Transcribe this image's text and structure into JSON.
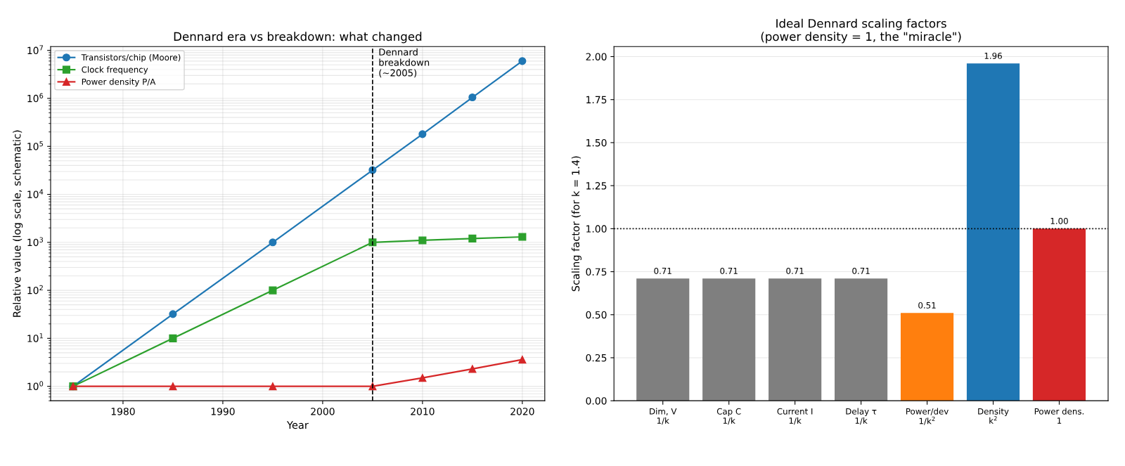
{
  "chart_data": [
    {
      "type": "line",
      "title": "Dennard era vs breakdown: what changed",
      "xlabel": "Year",
      "ylabel": "Relative value (log scale, schematic)",
      "x": [
        1975,
        1985,
        1995,
        2005,
        2010,
        2015,
        2020
      ],
      "series": [
        {
          "name": "Transistors/chip (Moore)",
          "color": "#1f77b4",
          "marker": "circle",
          "values": [
            1,
            32,
            1000,
            32000,
            180000,
            1050000,
            6000000
          ]
        },
        {
          "name": "Clock frequency",
          "color": "#2ca02c",
          "marker": "square",
          "values": [
            1,
            10,
            100,
            1000,
            1100,
            1200,
            1300
          ]
        },
        {
          "name": "Power density P/A",
          "color": "#d62728",
          "marker": "triangle",
          "values": [
            1,
            1,
            1,
            1,
            1.5,
            2.3,
            3.6
          ]
        }
      ],
      "log": "y",
      "xlim": [
        1972.75,
        2022.25
      ],
      "ylim": [
        0.5,
        12000000
      ],
      "xticks": [
        1980,
        1990,
        2000,
        2010,
        2020
      ],
      "yticks": [
        {
          "value": 1,
          "label": "10$^{0}$"
        },
        {
          "value": 10,
          "label": "10$^{1}$"
        },
        {
          "value": 100,
          "label": "10$^{2}$"
        },
        {
          "value": 1000,
          "label": "10$^{3}$"
        },
        {
          "value": 10000,
          "label": "10$^{4}$"
        },
        {
          "value": 100000,
          "label": "10$^{5}$"
        },
        {
          "value": 1000000,
          "label": "10$^{6}$"
        },
        {
          "value": 10000000,
          "label": "10$^{7}$"
        }
      ],
      "ref_lines": [
        {
          "axis": "x",
          "value": 2005,
          "label": "Dennard\nbreakdown\n(~2005)",
          "color": "#000000",
          "line_style": "dashed"
        }
      ],
      "grid": true,
      "legend": "top left",
      "line_style": "solid"
    },
    {
      "type": "bar",
      "title": "Ideal Dennard scaling factors\n(power density = 1, the \"miracle\")",
      "ylabel": "Scaling factor (for k = 1.4)",
      "categories": [
        "Dim, V\n1/k",
        "Cap C\n1/k",
        "Current I\n1/k",
        "Delay τ\n1/k",
        "Power/dev\n1/k$^{2}$",
        "Density\nk$^{2}$",
        "Power dens.\n1"
      ],
      "values": [
        0.71,
        0.71,
        0.71,
        0.71,
        0.51,
        1.96,
        1.0
      ],
      "colors": [
        "#7f7f7f",
        "#7f7f7f",
        "#7f7f7f",
        "#7f7f7f",
        "#ff7f0e",
        "#1f77b4",
        "#d62728"
      ],
      "value_labels": [
        "0.71",
        "0.71",
        "0.71",
        "0.71",
        "0.51",
        "1.96",
        "1.00"
      ],
      "ylim": [
        0,
        2.058
      ],
      "yticks": [
        {
          "value": 0,
          "label": "0.00"
        },
        {
          "value": 0.25,
          "label": "0.25"
        },
        {
          "value": 0.5,
          "label": "0.50"
        },
        {
          "value": 0.75,
          "label": "0.75"
        },
        {
          "value": 1.0,
          "label": "1.00"
        },
        {
          "value": 1.25,
          "label": "1.25"
        },
        {
          "value": 1.5,
          "label": "1.50"
        },
        {
          "value": 1.75,
          "label": "1.75"
        },
        {
          "value": 2.0,
          "label": "2.00"
        }
      ],
      "ref_lines": [
        {
          "axis": "y",
          "value": 1.0,
          "color": "#000000",
          "line_style": "dotted"
        }
      ],
      "grid": "y"
    }
  ]
}
